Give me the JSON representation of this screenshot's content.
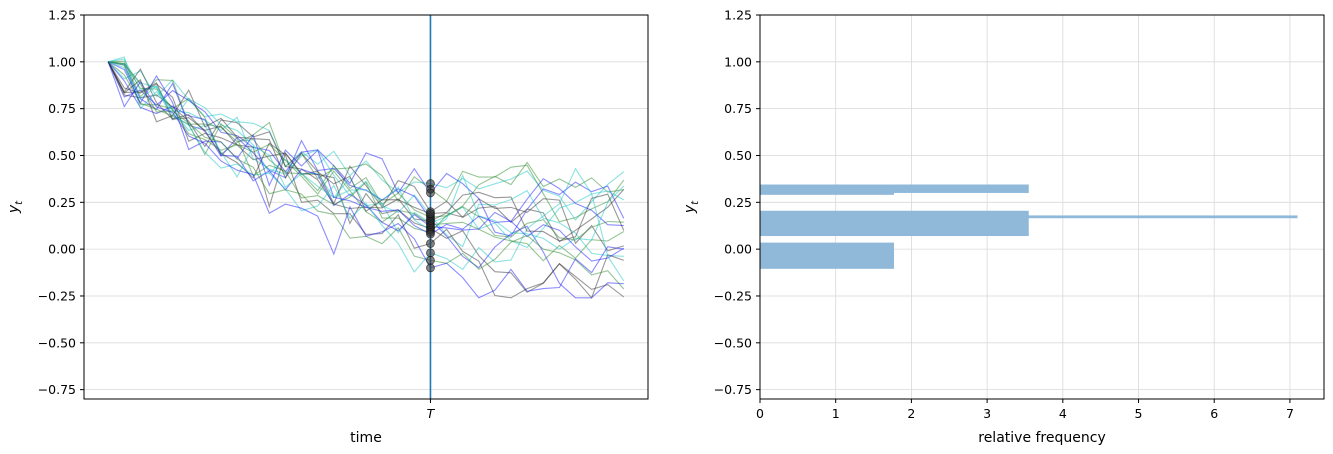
{
  "chart_data": [
    {
      "type": "line",
      "xlabel": "time",
      "ylabel": "y_t",
      "ylabel_math": {
        "base": "y",
        "sub": "t"
      },
      "x_tick_labels": [
        "T"
      ],
      "x_tick_T_value": 20,
      "xlim": [
        -1.5,
        33.5
      ],
      "ylim": [
        -0.8,
        1.25
      ],
      "yticks": [
        1.25,
        1.0,
        0.75,
        0.5,
        0.25,
        0.0,
        -0.25,
        -0.5,
        -0.75
      ],
      "ytick_labels": [
        "1.25",
        "1.00",
        "0.75",
        "0.50",
        "0.25",
        "0.00",
        "−0.25",
        "−0.50",
        "−0.75"
      ],
      "grid": "y-only",
      "vertical_line": {
        "x": 20,
        "color": "#1f77b4"
      },
      "n_paths": 20,
      "n_steps": 32,
      "start_value": 1.0,
      "path_colors": [
        "#1ac6c6",
        "#2e8b2e",
        "#1a1aff",
        "#333333"
      ],
      "series_alpha": 0.5,
      "values_at_T": [
        0.35,
        0.32,
        0.3,
        0.2,
        0.18,
        0.17,
        0.16,
        0.15,
        0.14,
        0.13,
        0.12,
        0.11,
        0.1,
        0.09,
        0.08,
        0.03,
        -0.02,
        -0.06,
        -0.1,
        0.19
      ],
      "end_range_approx": [
        -0.25,
        0.25
      ]
    },
    {
      "type": "bar",
      "orientation": "horizontal",
      "xlabel": "relative frequency",
      "ylabel": "y_t",
      "ylabel_math": {
        "base": "y",
        "sub": "t"
      },
      "xlim": [
        0,
        7.45
      ],
      "xticks": [
        0,
        1,
        2,
        3,
        4,
        5,
        6,
        7
      ],
      "ylim": [
        -0.8,
        1.25
      ],
      "yticks": [
        1.25,
        1.0,
        0.75,
        0.5,
        0.25,
        0.0,
        -0.25,
        -0.5,
        -0.75
      ],
      "ytick_labels": [
        "1.25",
        "1.00",
        "0.75",
        "0.50",
        "0.25",
        "0.00",
        "−0.25",
        "−0.50",
        "−0.75"
      ],
      "grid": "both",
      "bar_color": "#8fb8d9",
      "bars": [
        {
          "y_low": 0.3,
          "y_high": 0.345,
          "value": 3.55
        },
        {
          "y_low": 0.29,
          "y_high": 0.33,
          "value": 1.77
        },
        {
          "y_low": 0.165,
          "y_high": 0.18,
          "value": 7.1
        },
        {
          "y_low": 0.07,
          "y_high": 0.205,
          "value": 3.55
        },
        {
          "y_low": -0.105,
          "y_high": 0.035,
          "value": 1.77
        }
      ]
    }
  ]
}
